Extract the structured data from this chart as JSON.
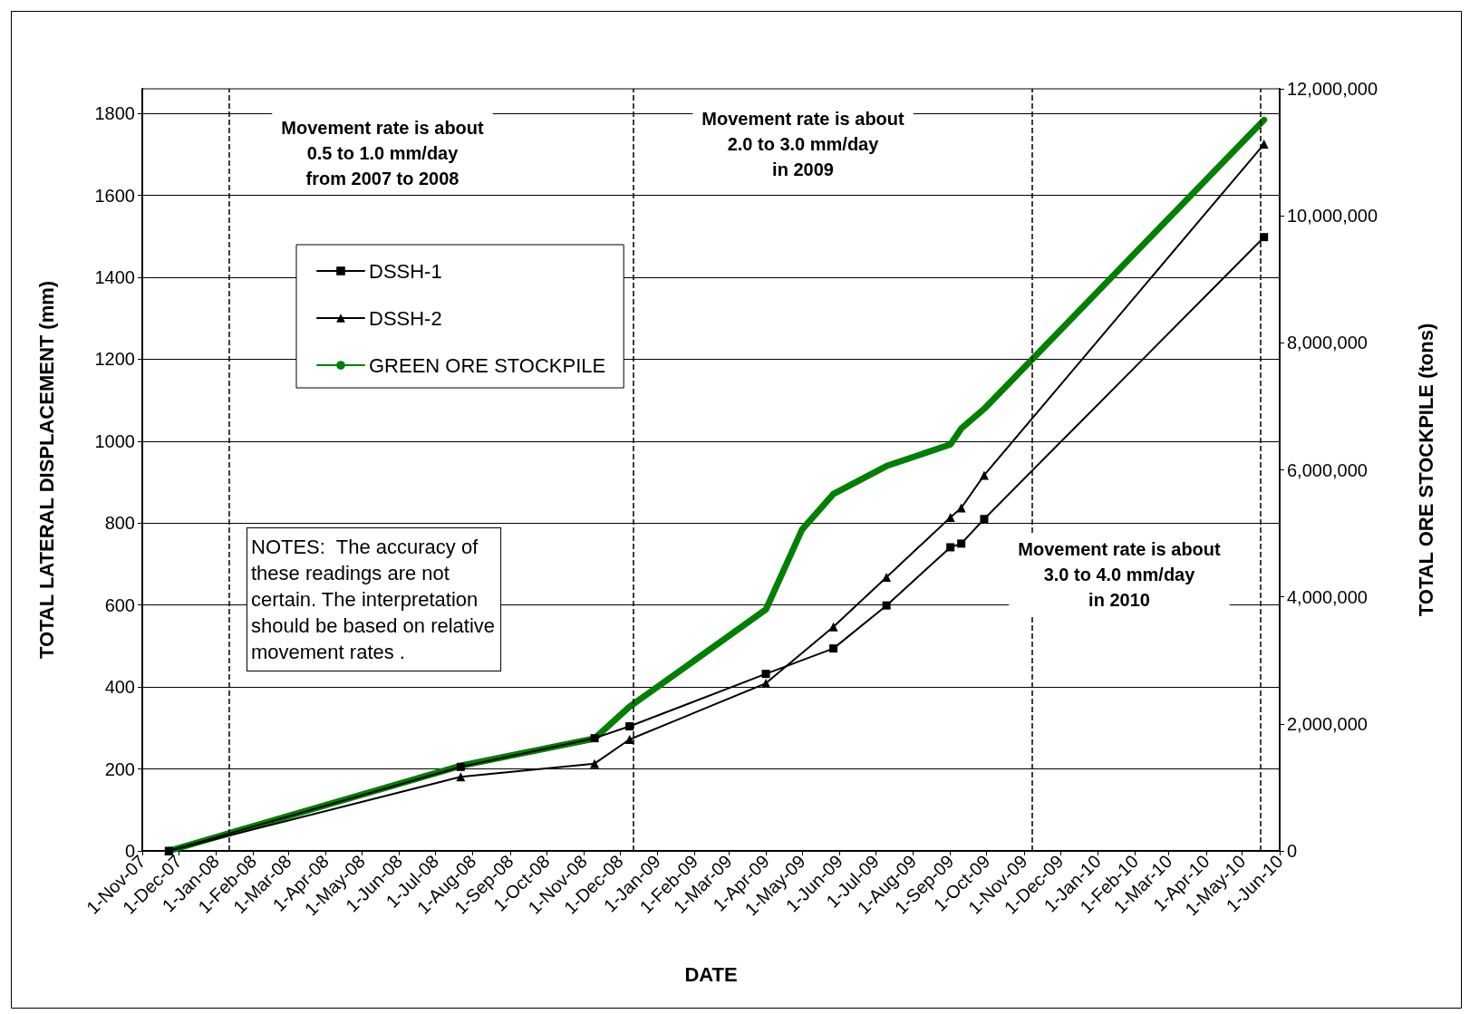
{
  "chart_data": {
    "type": "line",
    "xlabel": "DATE",
    "ylabel": "TOTAL LATERAL DISPLACEMENT (mm)",
    "y2label": "TOTAL ORE STOCKPILE (tons)",
    "series": [
      {
        "name": "DSSH-1",
        "color": "#000000",
        "marker": "square",
        "x": [
          "2007-11-23",
          "2008-07-22",
          "2008-11-10",
          "2008-12-09",
          "2009-04-01",
          "2009-05-27",
          "2009-07-10",
          "2009-09-01",
          "2009-09-10",
          "2009-09-29",
          "2010-05-19"
        ],
        "values": [
          0,
          205,
          275,
          304,
          432,
          494,
          599,
          741,
          750,
          810,
          1498
        ]
      },
      {
        "name": "DSSH-2",
        "color": "#000000",
        "marker": "triangle",
        "x": [
          "2007-11-23",
          "2008-07-22",
          "2008-11-10",
          "2008-12-09",
          "2009-04-01",
          "2009-05-27",
          "2009-07-10",
          "2009-09-01",
          "2009-09-10",
          "2009-09-29",
          "2010-05-19"
        ],
        "values": [
          0,
          181,
          213,
          272,
          409,
          547,
          668,
          814,
          837,
          917,
          1725
        ]
      },
      {
        "name": "GREEN ORE STOCKPILE",
        "color": "#008000",
        "marker": "none",
        "axis": "y2",
        "x": [
          "2007-11-23",
          "2008-07-22",
          "2008-11-10",
          "2008-12-09",
          "2009-04-01",
          "2009-05-01",
          "2009-05-27",
          "2009-07-10",
          "2009-09-01",
          "2009-09-10",
          "2009-09-29",
          "2010-05-19"
        ],
        "values": [
          0,
          1340000,
          1770000,
          2270000,
          3800000,
          5060000,
          5620000,
          6060000,
          6400000,
          6650000,
          6960000,
          11510000
        ]
      }
    ],
    "xlim": [
      "2007-11-01",
      "2010-06-01"
    ],
    "xticks": [
      {
        "value": "2007-11-01",
        "label": "1-Nov-07"
      },
      {
        "value": "2007-12-01",
        "label": "1-Dec-07"
      },
      {
        "value": "2008-01-01",
        "label": "1-Jan-08"
      },
      {
        "value": "2008-02-01",
        "label": "1-Feb-08"
      },
      {
        "value": "2008-03-01",
        "label": "1-Mar-08"
      },
      {
        "value": "2008-04-01",
        "label": "1-Apr-08"
      },
      {
        "value": "2008-05-01",
        "label": "1-May-08"
      },
      {
        "value": "2008-06-01",
        "label": "1-Jun-08"
      },
      {
        "value": "2008-07-01",
        "label": "1-Jul-08"
      },
      {
        "value": "2008-08-01",
        "label": "1-Aug-08"
      },
      {
        "value": "2008-09-01",
        "label": "1-Sep-08"
      },
      {
        "value": "2008-10-01",
        "label": "1-Oct-08"
      },
      {
        "value": "2008-11-01",
        "label": "1-Nov-08"
      },
      {
        "value": "2008-12-01",
        "label": "1-Dec-08"
      },
      {
        "value": "2009-01-01",
        "label": "1-Jan-09"
      },
      {
        "value": "2009-02-01",
        "label": "1-Feb-09"
      },
      {
        "value": "2009-03-01",
        "label": "1-Mar-09"
      },
      {
        "value": "2009-04-01",
        "label": "1-Apr-09"
      },
      {
        "value": "2009-05-01",
        "label": "1-May-09"
      },
      {
        "value": "2009-06-01",
        "label": "1-Jun-09"
      },
      {
        "value": "2009-07-01",
        "label": "1-Jul-09"
      },
      {
        "value": "2009-08-01",
        "label": "1-Aug-09"
      },
      {
        "value": "2009-09-01",
        "label": "1-Sep-09"
      },
      {
        "value": "2009-10-01",
        "label": "1-Oct-09"
      },
      {
        "value": "2009-11-01",
        "label": "1-Nov-09"
      },
      {
        "value": "2009-12-01",
        "label": "1-Dec-09"
      },
      {
        "value": "2010-01-01",
        "label": "1-Jan-10"
      },
      {
        "value": "2010-02-01",
        "label": "1-Feb-10"
      },
      {
        "value": "2010-03-01",
        "label": "1-Mar-10"
      },
      {
        "value": "2010-04-01",
        "label": "1-Apr-10"
      },
      {
        "value": "2010-05-01",
        "label": "1-May-10"
      },
      {
        "value": "2010-06-01",
        "label": "1-Jun-10"
      }
    ],
    "ylim": [
      0,
      1860
    ],
    "yticks": [
      0,
      200,
      400,
      600,
      800,
      1000,
      1200,
      1400,
      1600,
      1800
    ],
    "y2lim": [
      0,
      12000000
    ],
    "y2ticks": [
      0,
      {
        "value": 2000000,
        "label": "2,000,000"
      },
      {
        "value": 4000000,
        "label": "4,000,000"
      },
      {
        "value": 6000000,
        "label": "6,000,000"
      },
      {
        "value": 8000000,
        "label": "8,000,000"
      },
      {
        "value": 10000000,
        "label": "10,000,000"
      },
      {
        "value": 12000000,
        "label": "12,000,000"
      }
    ],
    "ref_lines": [
      {
        "axis": "x",
        "value": "2008-01-12",
        "line_style": "dashed"
      },
      {
        "axis": "x",
        "value": "2008-12-12",
        "line_style": "dashed"
      },
      {
        "axis": "x",
        "value": "2009-11-08",
        "line_style": "dashed"
      },
      {
        "axis": "x",
        "value": "2010-05-16",
        "line_style": "dashed"
      }
    ],
    "annotations": [
      "Movement rate is about\n0.5 to 1.0 mm/day\nfrom 2007 to 2008",
      "Movement rate is about\n2.0 to 3.0 mm/day\nin 2009",
      "Movement rate is about\n3.0 to 4.0 mm/day\nin 2010",
      "NOTES:  The accuracy of\nthese readings are not\ncertain. The interpretation\nshould be based on relative\nmovement rates ."
    ],
    "grid": "y",
    "legend": "top left",
    "line_style": "solid"
  }
}
